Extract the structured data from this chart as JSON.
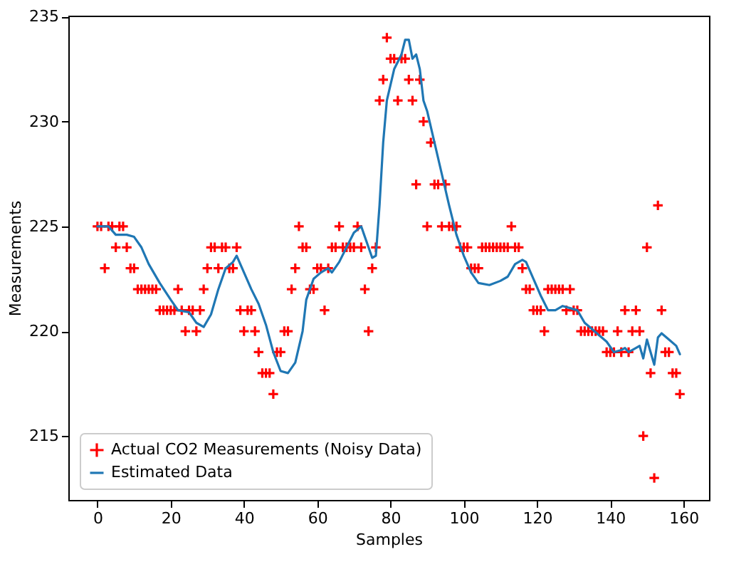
{
  "chart_data": {
    "type": "line",
    "xlabel": "Samples",
    "ylabel": "Measurements",
    "xlim": [
      -7.95,
      166.95
    ],
    "ylim": [
      211.95,
      235.05
    ],
    "xticks": [
      0,
      20,
      40,
      60,
      80,
      100,
      120,
      140,
      160
    ],
    "yticks": [
      215,
      220,
      225,
      230,
      235
    ],
    "grid": false,
    "legend": "bottom left",
    "series": [
      {
        "name": "Actual CO2 Measurements (Noisy Data)",
        "type": "scatter",
        "marker": "cross",
        "color": "#ff0000",
        "x": [
          0,
          1,
          2,
          3,
          4,
          5,
          6,
          7,
          8,
          9,
          10,
          11,
          12,
          13,
          14,
          15,
          16,
          17,
          18,
          19,
          20,
          21,
          22,
          23,
          24,
          25,
          26,
          27,
          28,
          29,
          30,
          31,
          32,
          33,
          34,
          35,
          36,
          37,
          38,
          39,
          40,
          41,
          42,
          43,
          44,
          45,
          46,
          47,
          48,
          49,
          50,
          51,
          52,
          53,
          54,
          55,
          56,
          57,
          58,
          59,
          60,
          61,
          62,
          63,
          64,
          65,
          66,
          67,
          68,
          69,
          70,
          71,
          72,
          73,
          74,
          75,
          76,
          77,
          78,
          79,
          80,
          81,
          82,
          83,
          84,
          85,
          86,
          87,
          88,
          89,
          90,
          91,
          92,
          93,
          94,
          95,
          96,
          97,
          98,
          99,
          100,
          101,
          102,
          103,
          104,
          105,
          106,
          107,
          108,
          109,
          110,
          111,
          112,
          113,
          114,
          115,
          116,
          117,
          118,
          119,
          120,
          121,
          122,
          123,
          124,
          125,
          126,
          127,
          128,
          129,
          130,
          131,
          132,
          133,
          134,
          135,
          136,
          137,
          138,
          139,
          140,
          141,
          142,
          143,
          144,
          145,
          146,
          147,
          148,
          149,
          150,
          151,
          152,
          153,
          154,
          155,
          156,
          157,
          158,
          159
        ],
        "values": [
          225,
          225,
          223,
          225,
          225,
          224,
          225,
          225,
          224,
          223,
          223,
          222,
          222,
          222,
          222,
          222,
          222,
          221,
          221,
          221,
          221,
          221,
          222,
          221,
          220,
          221,
          221,
          220,
          221,
          222,
          223,
          224,
          224,
          223,
          224,
          224,
          223,
          223,
          224,
          221,
          220,
          221,
          221,
          220,
          219,
          218,
          218,
          218,
          217,
          219,
          219,
          220,
          220,
          222,
          223,
          225,
          224,
          224,
          222,
          222,
          223,
          223,
          221,
          223,
          224,
          224,
          225,
          224,
          224,
          224,
          224,
          225,
          224,
          222,
          220,
          223,
          224,
          231,
          232,
          234,
          233,
          233,
          231,
          233,
          233,
          232,
          231,
          227,
          232,
          230,
          225,
          229,
          227,
          227,
          225,
          227,
          225,
          225,
          225,
          224,
          224,
          224,
          223,
          223,
          223,
          224,
          224,
          224,
          224,
          224,
          224,
          224,
          224,
          225,
          224,
          224,
          223,
          222,
          222,
          221,
          221,
          221,
          220,
          222,
          222,
          222,
          222,
          222,
          221,
          222,
          221,
          221,
          220,
          220,
          220,
          220,
          220,
          220,
          220,
          219,
          219,
          219,
          220,
          219,
          221,
          219,
          220,
          221,
          220,
          215,
          224,
          218,
          213,
          226,
          221,
          219,
          219,
          218,
          218,
          217
        ]
      },
      {
        "name": "Estimated Data",
        "marker": "none",
        "line_style": "solid",
        "color": "#1f77b4",
        "x": [
          0,
          3,
          5,
          8,
          10,
          12,
          14,
          17,
          20,
          22,
          25,
          27,
          29,
          31,
          33,
          35,
          37,
          38,
          40,
          42,
          44,
          46,
          48,
          50,
          52,
          54,
          56,
          57,
          59,
          61,
          63,
          64,
          66,
          68,
          70,
          72,
          74,
          75,
          76,
          77,
          78,
          79,
          81,
          83,
          84,
          85,
          86,
          87,
          88,
          89,
          90,
          92,
          94,
          96,
          98,
          100,
          102,
          104,
          107,
          110,
          112,
          114,
          116,
          117,
          119,
          121,
          123,
          125,
          127,
          129,
          131,
          133,
          135,
          137,
          139,
          141,
          143,
          144,
          145,
          147,
          148,
          149,
          150,
          151,
          152,
          153,
          154,
          156,
          158,
          159
        ],
        "values": [
          225,
          225,
          224.6,
          224.6,
          224.5,
          224,
          223.2,
          222.3,
          221.5,
          221,
          220.9,
          220.4,
          220.2,
          220.8,
          222,
          223,
          223.3,
          223.6,
          222.8,
          222,
          221.3,
          220.3,
          219,
          218.1,
          218,
          218.5,
          220,
          221.5,
          222.5,
          222.8,
          223,
          222.8,
          223.3,
          224,
          224.7,
          225,
          224,
          223.5,
          223.6,
          226,
          229,
          231,
          232.5,
          233.2,
          233.9,
          233.9,
          233,
          233.2,
          232.5,
          231,
          230.5,
          229,
          227.5,
          226,
          224.6,
          223.6,
          222.8,
          222.3,
          222.2,
          222.4,
          222.6,
          223.2,
          223.4,
          223.3,
          222.5,
          221.7,
          221,
          221,
          221.2,
          221.1,
          221,
          220.4,
          220.1,
          219.8,
          219.5,
          219,
          219.1,
          219.2,
          219,
          219.2,
          219.3,
          218.7,
          219.6,
          219,
          218.4,
          219.7,
          219.9,
          219.6,
          219.3,
          218.9
        ]
      }
    ]
  }
}
